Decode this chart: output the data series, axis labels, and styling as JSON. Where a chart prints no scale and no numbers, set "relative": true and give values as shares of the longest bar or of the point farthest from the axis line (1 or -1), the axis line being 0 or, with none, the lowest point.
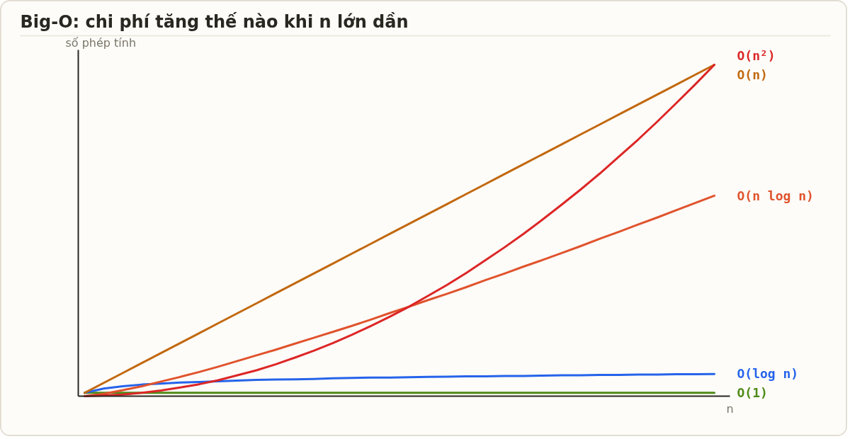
{
  "chart_data": {
    "type": "line",
    "title": "Big-O: chi phí tăng thế nào khi n lớn dần",
    "xlabel": "n",
    "ylabel": "số phép tính",
    "relative": true,
    "categories": [
      null,
      null,
      null,
      null,
      null,
      null,
      null,
      null,
      null,
      null,
      null,
      null,
      null,
      null,
      null,
      null,
      null,
      null,
      null,
      null,
      null,
      null,
      null,
      null,
      null,
      null,
      null,
      null,
      null,
      null,
      null,
      null,
      null,
      null
    ],
    "series": [
      {
        "name": "O(1)",
        "color": "#4e8a17",
        "values": [
          0.01,
          0.01,
          0.01,
          0.01,
          0.01,
          0.01,
          0.01,
          0.01,
          0.01,
          0.01,
          0.01,
          0.01,
          0.01,
          0.01,
          0.01,
          0.01,
          0.01,
          0.01,
          0.01,
          0.01,
          0.01,
          0.01,
          0.01,
          0.01,
          0.01,
          0.01,
          0.01,
          0.01,
          0.01,
          0.01,
          0.01,
          0.01,
          0.01,
          0.01
        ]
      },
      {
        "name": "O(log n)",
        "color": "#2563eb",
        "values": [
          0.01,
          0.023,
          0.03,
          0.035,
          0.038,
          0.041,
          0.043,
          0.045,
          0.047,
          0.049,
          0.05,
          0.051,
          0.052,
          0.054,
          0.055,
          0.056,
          0.056,
          0.057,
          0.058,
          0.059,
          0.06,
          0.06,
          0.061,
          0.061,
          0.062,
          0.063,
          0.063,
          0.064,
          0.064,
          0.065,
          0.065,
          0.066,
          0.066,
          0.067
        ]
      },
      {
        "name": "O(n)",
        "color": "#c2680e",
        "values": [
          0.01,
          0.04,
          0.07,
          0.1,
          0.13,
          0.16,
          0.19,
          0.22,
          0.25,
          0.28,
          0.31,
          0.34,
          0.37,
          0.4,
          0.43,
          0.46,
          0.49,
          0.52,
          0.55,
          0.58,
          0.61,
          0.64,
          0.67,
          0.7,
          0.73,
          0.76,
          0.79,
          0.82,
          0.85,
          0.88,
          0.91,
          0.94,
          0.97,
          1.0
        ]
      },
      {
        "name": "O(n log n)",
        "color": "#e0532d",
        "values": [
          0,
          0.007,
          0.018,
          0.03,
          0.044,
          0.058,
          0.073,
          0.089,
          0.106,
          0.123,
          0.14,
          0.158,
          0.176,
          0.194,
          0.212,
          0.231,
          0.251,
          0.27,
          0.29,
          0.309,
          0.329,
          0.35,
          0.37,
          0.391,
          0.411,
          0.432,
          0.453,
          0.475,
          0.496,
          0.518,
          0.539,
          0.561,
          0.583,
          0.605
        ]
      },
      {
        "name": "O(n²)",
        "color": "#dc2626",
        "values": [
          0,
          0.002,
          0.005,
          0.01,
          0.017,
          0.026,
          0.036,
          0.048,
          0.063,
          0.078,
          0.096,
          0.116,
          0.137,
          0.16,
          0.185,
          0.212,
          0.24,
          0.27,
          0.303,
          0.336,
          0.372,
          0.41,
          0.449,
          0.49,
          0.533,
          0.578,
          0.624,
          0.672,
          0.723,
          0.774,
          0.828,
          0.884,
          0.941,
          1.0
        ]
      }
    ]
  }
}
